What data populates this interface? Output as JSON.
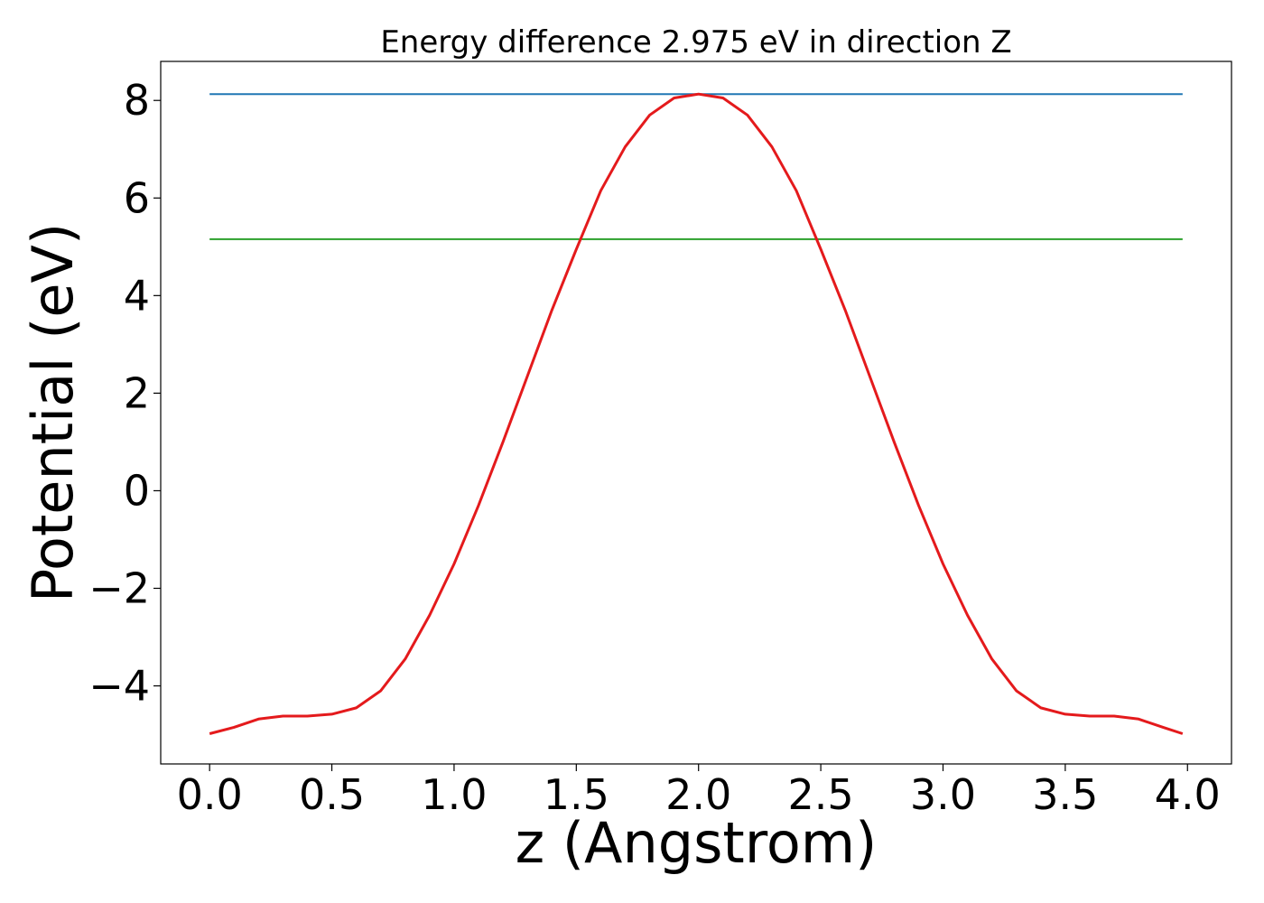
{
  "chart_data": {
    "type": "line",
    "title": "Energy difference 2.975 eV in direction Z",
    "xlabel": "z (Angstrom)",
    "ylabel": "Potential (eV)",
    "xlim": [
      -0.2,
      4.18
    ],
    "ylim": [
      -5.6,
      8.8
    ],
    "x_ticks": [
      0.0,
      0.5,
      1.0,
      1.5,
      2.0,
      2.5,
      3.0,
      3.5,
      4.0
    ],
    "x_tick_labels": [
      "0.0",
      "0.5",
      "1.0",
      "1.5",
      "2.0",
      "2.5",
      "3.0",
      "3.5",
      "4.0"
    ],
    "y_ticks": [
      -4,
      -2,
      0,
      2,
      4,
      6,
      8
    ],
    "y_tick_labels": [
      "−4",
      "−2",
      "0",
      "2",
      "4",
      "6",
      "8"
    ],
    "grid": false,
    "legend": "none",
    "hlines": [
      {
        "y": 8.13,
        "x_range": [
          0.0,
          3.98
        ],
        "color": "#1f77b4"
      },
      {
        "y": 5.155,
        "x_range": [
          0.0,
          3.98
        ],
        "color": "#2ca02c"
      }
    ],
    "series": [
      {
        "color": "#e41a1c",
        "x": [
          0.0,
          0.1,
          0.2,
          0.3,
          0.4,
          0.5,
          0.6,
          0.7,
          0.8,
          0.9,
          1.0,
          1.1,
          1.2,
          1.3,
          1.4,
          1.5,
          1.6,
          1.7,
          1.8,
          1.9,
          2.0,
          2.1,
          2.2,
          2.3,
          2.4,
          2.5,
          2.6,
          2.7,
          2.8,
          2.9,
          3.0,
          3.1,
          3.2,
          3.3,
          3.4,
          3.5,
          3.6,
          3.7,
          3.8,
          3.9,
          3.98
        ],
        "y": [
          -4.98,
          -4.85,
          -4.68,
          -4.62,
          -4.62,
          -4.58,
          -4.45,
          -4.1,
          -3.45,
          -2.55,
          -1.5,
          -0.3,
          1.0,
          2.35,
          3.7,
          4.95,
          6.15,
          7.05,
          7.7,
          8.05,
          8.13,
          8.05,
          7.7,
          7.05,
          6.15,
          4.95,
          3.7,
          2.35,
          1.0,
          -0.3,
          -1.5,
          -2.55,
          -3.45,
          -4.1,
          -4.45,
          -4.58,
          -4.62,
          -4.62,
          -4.68,
          -4.85,
          -4.98
        ]
      }
    ]
  }
}
